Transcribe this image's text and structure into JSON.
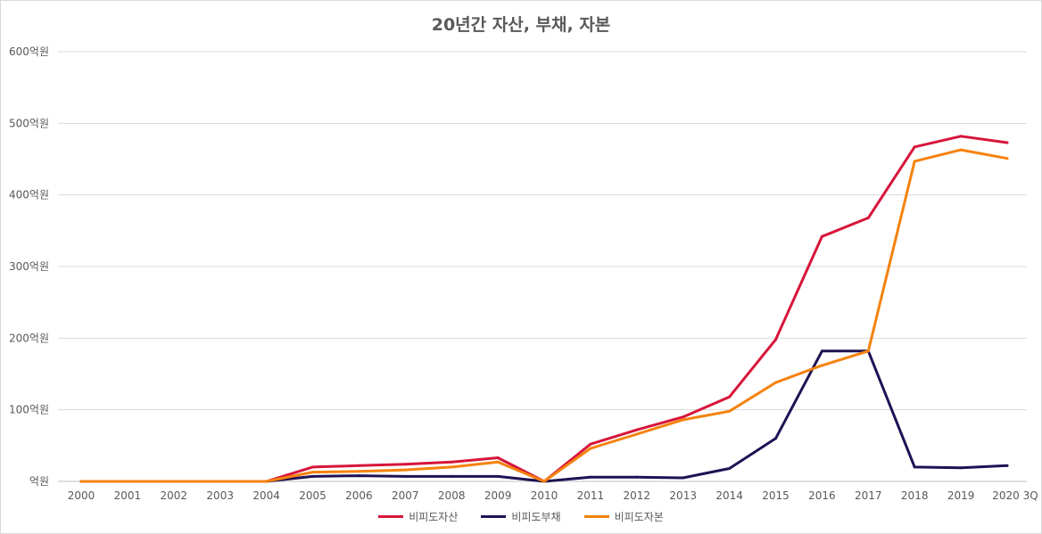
{
  "chart_data": {
    "type": "line",
    "title": "20년간 자산, 부채, 자본",
    "categories": [
      "2000",
      "2001",
      "2002",
      "2003",
      "2004",
      "2005",
      "2006",
      "2007",
      "2008",
      "2009",
      "2010",
      "2011",
      "2012",
      "2013",
      "2014",
      "2015",
      "2016",
      "2017",
      "2018",
      "2019",
      "2020 3Q"
    ],
    "ylim": [
      0,
      600
    ],
    "yticks": [
      0,
      100,
      200,
      300,
      400,
      500,
      600
    ],
    "ytick_labels": [
      "억원",
      "100억원",
      "200억원",
      "300억원",
      "400억원",
      "500억원",
      "600억원"
    ],
    "grid": true,
    "legend_position": "bottom",
    "series": [
      {
        "name": "비피도자산",
        "color": "#d7153a",
        "values": [
          0,
          0,
          0,
          0,
          0,
          20,
          22,
          24,
          27,
          33,
          0,
          52,
          72,
          90,
          118,
          198,
          342,
          368,
          467,
          482,
          473
        ]
      },
      {
        "name": "비피도부채",
        "color": "#1f1254",
        "values": [
          0,
          0,
          0,
          0,
          0,
          7,
          8,
          7,
          7,
          7,
          0,
          6,
          6,
          5,
          18,
          60,
          182,
          182,
          20,
          19,
          22
        ]
      },
      {
        "name": "비피도자본",
        "color": "#f5820d",
        "values": [
          0,
          0,
          0,
          0,
          0,
          13,
          14,
          16,
          20,
          27,
          0,
          46,
          66,
          86,
          98,
          138,
          162,
          182,
          447,
          463,
          451
        ]
      }
    ]
  }
}
